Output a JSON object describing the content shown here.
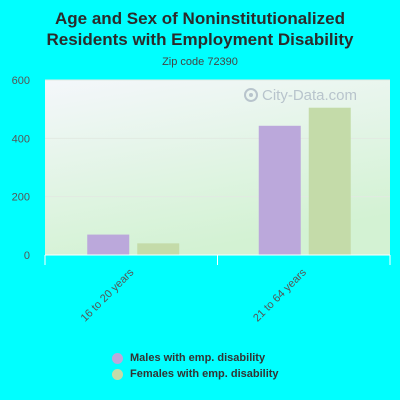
{
  "title": "Age and Sex of Noninstitutionalized Residents with Employment Disability",
  "subtitle": "Zip code 72390",
  "watermark": "City-Data.com",
  "chart_data": {
    "type": "bar",
    "title": "Age and Sex of Noninstitutionalized Residents with Employment Disability",
    "subtitle": "Zip code 72390",
    "categories": [
      "16 to 20 years",
      "21 to 64 years"
    ],
    "series": [
      {
        "name": "Males with emp. disability",
        "values": [
          70,
          443
        ],
        "color": "#bba8db"
      },
      {
        "name": "Females with emp. disability",
        "values": [
          40,
          505
        ],
        "color": "#c4dba9"
      }
    ],
    "ylim": [
      0,
      600
    ],
    "yticks": [
      0,
      200,
      400,
      600
    ],
    "xlabel": "",
    "ylabel": "",
    "grid": true,
    "legend_position": "bottom"
  }
}
